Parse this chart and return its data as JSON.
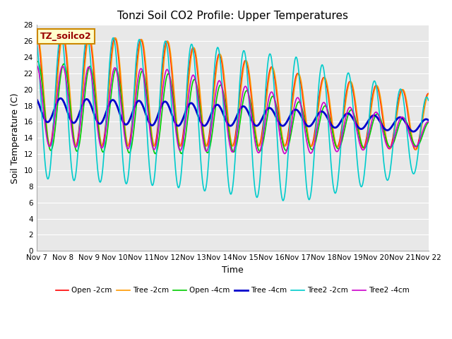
{
  "title": "Tonzi Soil CO2 Profile: Upper Temperatures",
  "xlabel": "Time",
  "ylabel": "Soil Temperature (C)",
  "ylim": [
    0,
    28
  ],
  "yticks": [
    0,
    2,
    4,
    6,
    8,
    10,
    12,
    14,
    16,
    18,
    20,
    22,
    24,
    26,
    28
  ],
  "xtick_labels": [
    "Nov 7",
    "Nov 8",
    "Nov 9",
    "Nov 10",
    "Nov 11",
    "Nov 12",
    "Nov 13",
    "Nov 14",
    "Nov 15",
    "Nov 16",
    "Nov 17",
    "Nov 18",
    "Nov 19",
    "Nov 20",
    "Nov 21",
    "Nov 22"
  ],
  "annotation_text": "TZ_soilco2",
  "annotation_box_color": "#ffffcc",
  "annotation_box_edge": "#cc8800",
  "bg_color": "#ffffff",
  "plot_bg_color": "#e8e8e8",
  "series": [
    {
      "label": "Open -2cm",
      "color": "#ff0000",
      "lw": 1.2,
      "ls": "-"
    },
    {
      "label": "Tree -2cm",
      "color": "#ff9900",
      "lw": 1.2,
      "ls": "-"
    },
    {
      "label": "Open -4cm",
      "color": "#00cc00",
      "lw": 1.2,
      "ls": "-"
    },
    {
      "label": "Tree -4cm",
      "color": "#0000cc",
      "lw": 2.0,
      "ls": "-"
    },
    {
      "label": "Tree2 -2cm",
      "color": "#00cccc",
      "lw": 1.2,
      "ls": "-"
    },
    {
      "label": "Tree2 -4cm",
      "color": "#cc00cc",
      "lw": 1.2,
      "ls": "-"
    }
  ]
}
